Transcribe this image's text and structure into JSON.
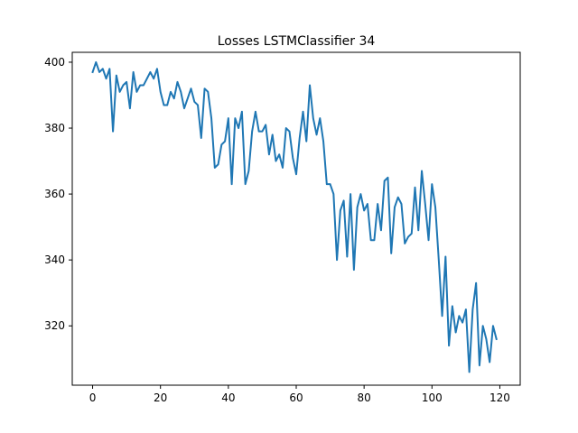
{
  "chart_data": {
    "type": "line",
    "title": "Losses LSTMClassifier 34",
    "xlabel": "",
    "ylabel": "",
    "xlim": [
      -6,
      126
    ],
    "ylim": [
      302,
      403
    ],
    "xticks": [
      0,
      20,
      40,
      60,
      80,
      100,
      120
    ],
    "yticks": [
      320,
      340,
      360,
      380,
      400
    ],
    "grid": false,
    "legend": "none",
    "series": [
      {
        "color": "#1f77b4",
        "x": [
          0,
          1,
          2,
          3,
          4,
          5,
          6,
          7,
          8,
          9,
          10,
          11,
          12,
          13,
          14,
          15,
          16,
          17,
          18,
          19,
          20,
          21,
          22,
          23,
          24,
          25,
          26,
          27,
          28,
          29,
          30,
          31,
          32,
          33,
          34,
          35,
          36,
          37,
          38,
          39,
          40,
          41,
          42,
          43,
          44,
          45,
          46,
          47,
          48,
          49,
          50,
          51,
          52,
          53,
          54,
          55,
          56,
          57,
          58,
          59,
          60,
          61,
          62,
          63,
          64,
          65,
          66,
          67,
          68,
          69,
          70,
          71,
          72,
          73,
          74,
          75,
          76,
          77,
          78,
          79,
          80,
          81,
          82,
          83,
          84,
          85,
          86,
          87,
          88,
          89,
          90,
          91,
          92,
          93,
          94,
          95,
          96,
          97,
          98,
          99,
          100,
          101,
          102,
          103,
          104,
          105,
          106,
          107,
          108,
          109,
          110,
          111,
          112,
          113,
          114,
          115,
          116,
          117,
          118,
          119
        ],
        "y": [
          397,
          400,
          397,
          398,
          395,
          398,
          379,
          396,
          391,
          393,
          394,
          386,
          397,
          391,
          393,
          393,
          395,
          397,
          395,
          398,
          391,
          387,
          387,
          391,
          389,
          394,
          391,
          386,
          389,
          392,
          388,
          387,
          377,
          392,
          391,
          383,
          368,
          369,
          375,
          376,
          383,
          363,
          383,
          380,
          385,
          363,
          367,
          379,
          385,
          379,
          379,
          381,
          372,
          378,
          370,
          372,
          368,
          380,
          379,
          371,
          366,
          377,
          385,
          376,
          393,
          383,
          378,
          383,
          376,
          363,
          363,
          360,
          340,
          355,
          358,
          341,
          360,
          337,
          356,
          360,
          355,
          357,
          346,
          346,
          357,
          349,
          364,
          365,
          342,
          356,
          359,
          357,
          345,
          347,
          348,
          362,
          349,
          367,
          357,
          346,
          363,
          356,
          340,
          323,
          341,
          314,
          326,
          318,
          323,
          321,
          325,
          306,
          325,
          333,
          308,
          320,
          316,
          309,
          320,
          316
        ]
      }
    ]
  }
}
